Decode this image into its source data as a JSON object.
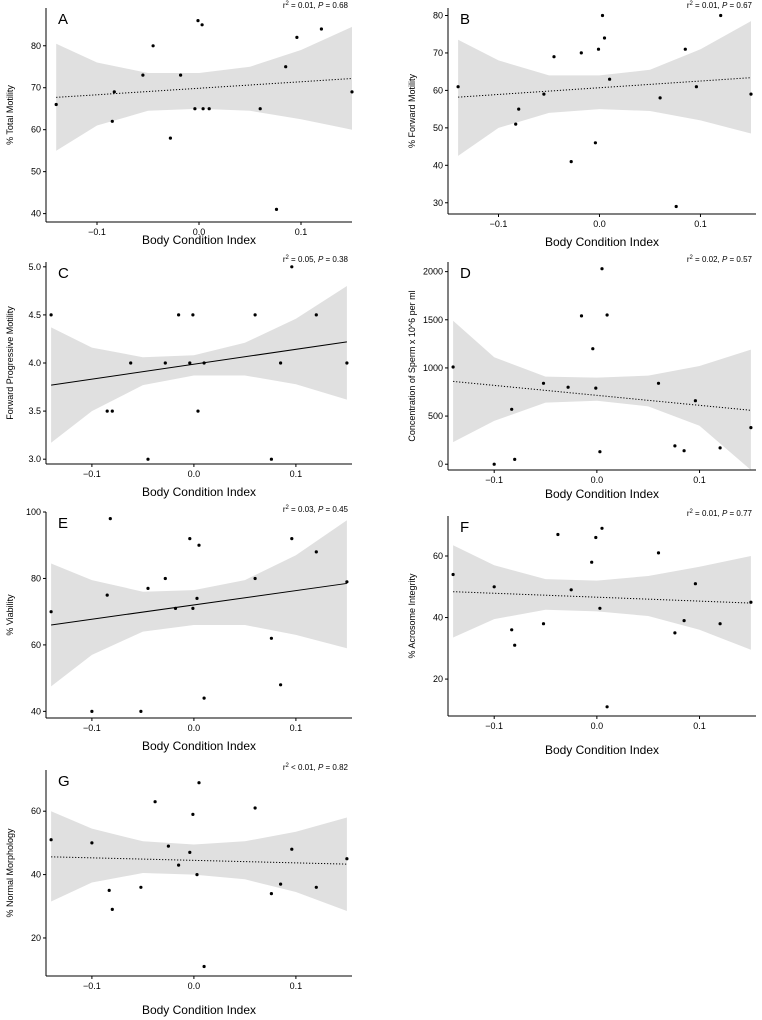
{
  "chart_data": [
    {
      "type": "scatter",
      "panel_label": "A",
      "stat_text": "r² = 0.01, P = 0.68",
      "xlabel": "Body Condition Index",
      "ylabel": "% Total Motility",
      "xlim": [
        -0.15,
        0.15
      ],
      "ylim": [
        38,
        89
      ],
      "xticks": [
        -0.1,
        0.0,
        0.1
      ],
      "xtick_labels": [
        "−0.1",
        "0.0",
        "0.1"
      ],
      "yticks": [
        40,
        50,
        60,
        70,
        80
      ],
      "ytick_labels": [
        "40",
        "50",
        "60",
        "70",
        "80"
      ],
      "fit_line": {
        "style": "dotted",
        "x": [
          -0.14,
          0.15
        ],
        "y": [
          67.7,
          72.2
        ]
      },
      "band": {
        "x": [
          -0.14,
          -0.1,
          -0.05,
          0.0,
          0.05,
          0.1,
          0.15
        ],
        "lower": [
          55,
          61,
          64.5,
          65,
          64.5,
          62.5,
          60
        ],
        "upper": [
          80.5,
          76,
          73.5,
          73.5,
          75,
          79,
          84.5
        ]
      },
      "points": [
        {
          "x": -0.14,
          "y": 66
        },
        {
          "x": -0.085,
          "y": 62
        },
        {
          "x": -0.083,
          "y": 69
        },
        {
          "x": -0.055,
          "y": 73
        },
        {
          "x": -0.045,
          "y": 80
        },
        {
          "x": -0.028,
          "y": 58
        },
        {
          "x": -0.018,
          "y": 73
        },
        {
          "x": -0.004,
          "y": 65
        },
        {
          "x": -0.001,
          "y": 86
        },
        {
          "x": 0.003,
          "y": 85
        },
        {
          "x": 0.004,
          "y": 65
        },
        {
          "x": 0.01,
          "y": 65
        },
        {
          "x": 0.06,
          "y": 65
        },
        {
          "x": 0.076,
          "y": 41
        },
        {
          "x": 0.085,
          "y": 75
        },
        {
          "x": 0.096,
          "y": 82
        },
        {
          "x": 0.12,
          "y": 84
        },
        {
          "x": 0.15,
          "y": 69
        }
      ]
    },
    {
      "type": "scatter",
      "panel_label": "B",
      "stat_text": "r² = 0.01, P = 0.67",
      "xlabel": "Body Condition Index",
      "ylabel": "% Forward Motility",
      "xlim": [
        -0.15,
        0.155
      ],
      "ylim": [
        27,
        82
      ],
      "xticks": [
        -0.1,
        0.0,
        0.1
      ],
      "xtick_labels": [
        "−0.1",
        "0.0",
        "0.1"
      ],
      "yticks": [
        30,
        40,
        50,
        60,
        70,
        80
      ],
      "ytick_labels": [
        "30",
        "40",
        "50",
        "60",
        "70",
        "80"
      ],
      "fit_line": {
        "style": "dotted",
        "x": [
          -0.14,
          0.15
        ],
        "y": [
          58.2,
          63.4
        ]
      },
      "band": {
        "x": [
          -0.14,
          -0.1,
          -0.05,
          0.0,
          0.05,
          0.1,
          0.15
        ],
        "lower": [
          42.5,
          50,
          54,
          55,
          54.5,
          52,
          48.5
        ],
        "upper": [
          73.5,
          68,
          64,
          64,
          65.5,
          71,
          78.5
        ]
      },
      "points": [
        {
          "x": -0.14,
          "y": 61
        },
        {
          "x": -0.083,
          "y": 51
        },
        {
          "x": -0.08,
          "y": 55
        },
        {
          "x": -0.055,
          "y": 59
        },
        {
          "x": -0.045,
          "y": 69
        },
        {
          "x": -0.028,
          "y": 41
        },
        {
          "x": -0.018,
          "y": 70
        },
        {
          "x": -0.004,
          "y": 46
        },
        {
          "x": -0.001,
          "y": 71
        },
        {
          "x": 0.003,
          "y": 80
        },
        {
          "x": 0.005,
          "y": 74
        },
        {
          "x": 0.01,
          "y": 63
        },
        {
          "x": 0.06,
          "y": 58
        },
        {
          "x": 0.076,
          "y": 29
        },
        {
          "x": 0.085,
          "y": 71
        },
        {
          "x": 0.096,
          "y": 61
        },
        {
          "x": 0.12,
          "y": 80
        },
        {
          "x": 0.15,
          "y": 59
        }
      ]
    },
    {
      "type": "scatter",
      "panel_label": "C",
      "stat_text": "r² = 0.05, P = 0.38",
      "xlabel": "Body Condition Index",
      "ylabel": "Forward Progressive Motility",
      "xlim": [
        -0.145,
        0.155
      ],
      "ylim": [
        2.95,
        5.05
      ],
      "xticks": [
        -0.1,
        0.0,
        0.1
      ],
      "xtick_labels": [
        "−0.1",
        "0.0",
        "0.1"
      ],
      "yticks": [
        3.0,
        3.5,
        4.0,
        4.5,
        5.0
      ],
      "ytick_labels": [
        "3.0",
        "3.5",
        "4.0",
        "4.5",
        "5.0"
      ],
      "fit_line": {
        "style": "solid",
        "x": [
          -0.14,
          0.15
        ],
        "y": [
          3.77,
          4.22
        ]
      },
      "band": {
        "x": [
          -0.14,
          -0.1,
          -0.05,
          0.0,
          0.05,
          0.1,
          0.15
        ],
        "lower": [
          3.17,
          3.5,
          3.77,
          3.87,
          3.87,
          3.78,
          3.62
        ],
        "upper": [
          4.37,
          4.16,
          4.06,
          4.08,
          4.21,
          4.46,
          4.8
        ]
      },
      "points": [
        {
          "x": -0.14,
          "y": 4.5
        },
        {
          "x": -0.085,
          "y": 3.5
        },
        {
          "x": -0.08,
          "y": 3.5
        },
        {
          "x": -0.062,
          "y": 4.0
        },
        {
          "x": -0.045,
          "y": 3.0
        },
        {
          "x": -0.028,
          "y": 4.0
        },
        {
          "x": -0.015,
          "y": 4.5
        },
        {
          "x": -0.004,
          "y": 4.0
        },
        {
          "x": -0.001,
          "y": 4.5
        },
        {
          "x": 0.004,
          "y": 3.5
        },
        {
          "x": 0.01,
          "y": 4.0
        },
        {
          "x": 0.06,
          "y": 4.5
        },
        {
          "x": 0.076,
          "y": 3.0
        },
        {
          "x": 0.085,
          "y": 4.0
        },
        {
          "x": 0.096,
          "y": 5.0
        },
        {
          "x": 0.12,
          "y": 4.5
        },
        {
          "x": 0.15,
          "y": 4.0
        }
      ]
    },
    {
      "type": "scatter",
      "panel_label": "D",
      "stat_text": "r² = 0.02, P = 0.57",
      "xlabel": "Body Condition Index",
      "ylabel": "Concentration of Sperm x 10^6 per ml",
      "xlim": [
        -0.145,
        0.155
      ],
      "ylim": [
        -60,
        2100
      ],
      "xticks": [
        -0.1,
        0.0,
        0.1
      ],
      "xtick_labels": [
        "−0.1",
        "0.0",
        "0.1"
      ],
      "yticks": [
        0,
        500,
        1000,
        1500,
        2000
      ],
      "ytick_labels": [
        "0",
        "500",
        "1000",
        "1500",
        "2000"
      ],
      "fit_line": {
        "style": "dotted",
        "x": [
          -0.14,
          0.15
        ],
        "y": [
          860,
          560
        ]
      },
      "band": {
        "x": [
          -0.14,
          -0.1,
          -0.05,
          0.0,
          0.05,
          0.1,
          0.15
        ],
        "lower": [
          230,
          450,
          640,
          660,
          600,
          400,
          -60
        ],
        "upper": [
          1490,
          1110,
          910,
          900,
          920,
          1020,
          1190
        ]
      },
      "points": [
        {
          "x": -0.14,
          "y": 1010
        },
        {
          "x": -0.1,
          "y": 0
        },
        {
          "x": -0.083,
          "y": 570
        },
        {
          "x": -0.08,
          "y": 50
        },
        {
          "x": -0.052,
          "y": 840
        },
        {
          "x": -0.028,
          "y": 800
        },
        {
          "x": -0.015,
          "y": 1540
        },
        {
          "x": -0.004,
          "y": 1200
        },
        {
          "x": -0.001,
          "y": 790
        },
        {
          "x": 0.003,
          "y": 130
        },
        {
          "x": 0.005,
          "y": 2030
        },
        {
          "x": 0.01,
          "y": 1550
        },
        {
          "x": 0.06,
          "y": 840
        },
        {
          "x": 0.076,
          "y": 190
        },
        {
          "x": 0.085,
          "y": 140
        },
        {
          "x": 0.096,
          "y": 660
        },
        {
          "x": 0.12,
          "y": 170
        },
        {
          "x": 0.15,
          "y": 380
        }
      ]
    },
    {
      "type": "scatter",
      "panel_label": "E",
      "stat_text": "r² = 0.03, P = 0.45",
      "xlabel": "Body Condition Index",
      "ylabel": "% Viability",
      "xlim": [
        -0.145,
        0.155
      ],
      "ylim": [
        38,
        100
      ],
      "xticks": [
        -0.1,
        0.0,
        0.1
      ],
      "xtick_labels": [
        "−0.1",
        "0.0",
        "0.1"
      ],
      "yticks": [
        40,
        60,
        80,
        100
      ],
      "ytick_labels": [
        "40",
        "60",
        "80",
        "100"
      ],
      "fit_line": {
        "style": "solid",
        "x": [
          -0.14,
          0.15
        ],
        "y": [
          66,
          78.5
        ]
      },
      "band": {
        "x": [
          -0.14,
          -0.1,
          -0.05,
          0.0,
          0.05,
          0.1,
          0.15
        ],
        "lower": [
          47.5,
          57,
          64,
          66,
          66,
          63,
          59
        ],
        "upper": [
          84.5,
          79.5,
          76,
          76.5,
          79.5,
          87,
          97.5
        ]
      },
      "points": [
        {
          "x": -0.14,
          "y": 70
        },
        {
          "x": -0.1,
          "y": 40
        },
        {
          "x": -0.085,
          "y": 75
        },
        {
          "x": -0.082,
          "y": 98
        },
        {
          "x": -0.052,
          "y": 40
        },
        {
          "x": -0.045,
          "y": 77
        },
        {
          "x": -0.028,
          "y": 80
        },
        {
          "x": -0.018,
          "y": 71
        },
        {
          "x": -0.004,
          "y": 92
        },
        {
          "x": -0.001,
          "y": 71
        },
        {
          "x": 0.003,
          "y": 74
        },
        {
          "x": 0.005,
          "y": 90
        },
        {
          "x": 0.01,
          "y": 44
        },
        {
          "x": 0.06,
          "y": 80
        },
        {
          "x": 0.076,
          "y": 62
        },
        {
          "x": 0.085,
          "y": 48
        },
        {
          "x": 0.096,
          "y": 92
        },
        {
          "x": 0.12,
          "y": 88
        },
        {
          "x": 0.15,
          "y": 79
        }
      ]
    },
    {
      "type": "scatter",
      "panel_label": "F",
      "stat_text": "r² = 0.01, P = 0.77",
      "xlabel": "Body Condition Index",
      "ylabel": "% Acrosome Integrity",
      "xlim": [
        -0.145,
        0.155
      ],
      "ylim": [
        8,
        73
      ],
      "xticks": [
        -0.1,
        0.0,
        0.1
      ],
      "xtick_labels": [
        "−0.1",
        "0.0",
        "0.1"
      ],
      "yticks": [
        20,
        40,
        60
      ],
      "ytick_labels": [
        "20",
        "40",
        "60"
      ],
      "fit_line": {
        "style": "dotted",
        "x": [
          -0.14,
          0.15
        ],
        "y": [
          48.4,
          44.7
        ]
      },
      "band": {
        "x": [
          -0.14,
          -0.1,
          -0.05,
          0.0,
          0.05,
          0.1,
          0.15
        ],
        "lower": [
          33.5,
          39.5,
          42.5,
          42,
          40.5,
          36,
          29.5
        ],
        "upper": [
          63.5,
          57,
          52.5,
          52,
          53.5,
          56.5,
          60
        ]
      },
      "points": [
        {
          "x": -0.14,
          "y": 54
        },
        {
          "x": -0.1,
          "y": 50
        },
        {
          "x": -0.083,
          "y": 36
        },
        {
          "x": -0.08,
          "y": 31
        },
        {
          "x": -0.052,
          "y": 38
        },
        {
          "x": -0.038,
          "y": 67
        },
        {
          "x": -0.025,
          "y": 49
        },
        {
          "x": -0.005,
          "y": 58
        },
        {
          "x": -0.001,
          "y": 66
        },
        {
          "x": 0.003,
          "y": 43
        },
        {
          "x": 0.005,
          "y": 69
        },
        {
          "x": 0.01,
          "y": 11
        },
        {
          "x": 0.06,
          "y": 61
        },
        {
          "x": 0.076,
          "y": 35
        },
        {
          "x": 0.085,
          "y": 39
        },
        {
          "x": 0.096,
          "y": 51
        },
        {
          "x": 0.12,
          "y": 38
        },
        {
          "x": 0.15,
          "y": 45
        }
      ]
    },
    {
      "type": "scatter",
      "panel_label": "G",
      "stat_text": "r² < 0.01, P = 0.82",
      "xlabel": "Body Condition Index",
      "ylabel": "% Normal Morphology",
      "xlim": [
        -0.145,
        0.155
      ],
      "ylim": [
        8,
        73
      ],
      "xticks": [
        -0.1,
        0.0,
        0.1
      ],
      "xtick_labels": [
        "−0.1",
        "0.0",
        "0.1"
      ],
      "yticks": [
        20,
        40,
        60
      ],
      "ytick_labels": [
        "20",
        "40",
        "60"
      ],
      "fit_line": {
        "style": "dotted",
        "x": [
          -0.14,
          0.15
        ],
        "y": [
          45.6,
          43.3
        ]
      },
      "band": {
        "x": [
          -0.14,
          -0.1,
          -0.05,
          0.0,
          0.05,
          0.1,
          0.15
        ],
        "lower": [
          31.5,
          37.5,
          40.5,
          40,
          38.5,
          34.5,
          28.5
        ],
        "upper": [
          60,
          54.5,
          50.5,
          49.5,
          50.5,
          53.5,
          58
        ]
      },
      "points": [
        {
          "x": -0.14,
          "y": 51
        },
        {
          "x": -0.1,
          "y": 50
        },
        {
          "x": -0.083,
          "y": 35
        },
        {
          "x": -0.08,
          "y": 29
        },
        {
          "x": -0.052,
          "y": 36
        },
        {
          "x": -0.038,
          "y": 63
        },
        {
          "x": -0.025,
          "y": 49
        },
        {
          "x": -0.015,
          "y": 43
        },
        {
          "x": -0.004,
          "y": 47
        },
        {
          "x": -0.001,
          "y": 59
        },
        {
          "x": 0.003,
          "y": 40
        },
        {
          "x": 0.005,
          "y": 69
        },
        {
          "x": 0.01,
          "y": 11
        },
        {
          "x": 0.06,
          "y": 61
        },
        {
          "x": 0.076,
          "y": 34
        },
        {
          "x": 0.085,
          "y": 37
        },
        {
          "x": 0.096,
          "y": 48
        },
        {
          "x": 0.12,
          "y": 36
        },
        {
          "x": 0.15,
          "y": 45
        }
      ]
    }
  ]
}
